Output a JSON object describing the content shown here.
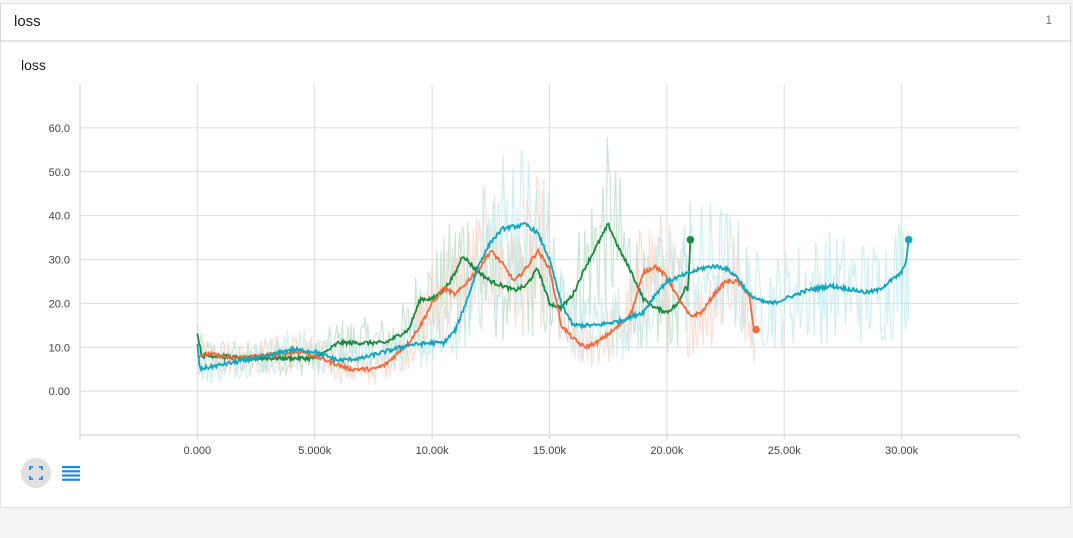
{
  "card": {
    "title": "loss",
    "count": "1"
  },
  "toolbar": {
    "fit_icon": "fit-to-data-icon",
    "list_icon": "data-list-icon"
  },
  "chart_data": {
    "type": "line",
    "title": "loss",
    "xlabel": "",
    "ylabel": "",
    "xlim": [
      -5000,
      35000
    ],
    "ylim": [
      -10,
      70
    ],
    "x_ticks": [
      0,
      5000,
      10000,
      15000,
      20000,
      25000,
      30000
    ],
    "x_tick_labels": [
      "0.000",
      "5.000k",
      "10.00k",
      "15.00k",
      "20.00k",
      "25.00k",
      "30.00k"
    ],
    "y_ticks": [
      0,
      10,
      20,
      30,
      40,
      50,
      60
    ],
    "y_tick_labels": [
      "0.00",
      "10.0",
      "20.0",
      "30.0",
      "40.0",
      "50.0",
      "60.0"
    ],
    "grid": true,
    "series": [
      {
        "color": "#1b8a3e",
        "raw_color": "#b9dcc4",
        "x": [
          0,
          200,
          1000,
          2000,
          3000,
          4000,
          5000,
          5500,
          6000,
          7000,
          8000,
          9000,
          9500,
          10000,
          10500,
          11000,
          11300,
          11800,
          12500,
          13000,
          13500,
          14000,
          14500,
          15000,
          15500,
          16000,
          16500,
          17000,
          17500,
          18000,
          18500,
          19000,
          19500,
          20000,
          20500,
          20800,
          20900,
          21000
        ],
        "y": [
          13,
          8,
          8,
          7.5,
          7.5,
          7.5,
          7.5,
          9,
          11,
          11,
          11,
          14,
          21,
          21,
          23,
          27,
          31,
          28,
          25,
          24,
          23,
          24,
          28,
          20,
          19,
          22,
          28,
          33,
          38,
          32,
          27,
          21,
          19,
          18,
          20,
          24,
          23,
          34.5
        ]
      },
      {
        "color": "#f36b3b",
        "raw_color": "#fdd3c6",
        "x": [
          0,
          500,
          1500,
          2500,
          3500,
          4500,
          5500,
          6000,
          6500,
          7500,
          8000,
          9000,
          9500,
          10000,
          10500,
          11000,
          11500,
          12000,
          12500,
          13000,
          13500,
          14000,
          14500,
          15000,
          15500,
          16000,
          16500,
          17000,
          17500,
          18000,
          18500,
          19000,
          19500,
          20000,
          20500,
          21000,
          21500,
          22000,
          22500,
          23000,
          23500,
          23700,
          23800
        ],
        "y": [
          8,
          8.5,
          7.5,
          8,
          8.5,
          9,
          7,
          6,
          5,
          5,
          6,
          11,
          15,
          20,
          23.5,
          22,
          25,
          28,
          32,
          29,
          25,
          28,
          32,
          28,
          15,
          12,
          10,
          11,
          13,
          15,
          18,
          27,
          28.5,
          26,
          21,
          17,
          18,
          22,
          25,
          25,
          22,
          14,
          14
        ]
      },
      {
        "color": "#13a5bd",
        "raw_color": "#c0e9ef",
        "x": [
          0,
          100,
          1000,
          2000,
          3000,
          4000,
          5000,
          5500,
          6000,
          7000,
          8000,
          9000,
          10000,
          10500,
          11000,
          11500,
          12000,
          12500,
          13000,
          13500,
          14000,
          14500,
          15000,
          15500,
          16000,
          17000,
          18000,
          19000,
          19500,
          20000,
          20500,
          21000,
          21500,
          22000,
          22500,
          23000,
          23500,
          24000,
          24500,
          25000,
          26000,
          27000,
          28000,
          28500,
          29000,
          29500,
          30000,
          30200,
          30300
        ],
        "y": [
          11,
          5,
          6,
          7,
          8,
          9.5,
          9,
          8,
          7,
          7.5,
          9,
          10.5,
          11,
          11,
          14,
          21,
          29,
          34,
          37,
          37.5,
          38,
          36,
          30,
          20,
          15,
          15,
          16,
          18,
          22,
          25,
          26,
          27,
          28,
          28.5,
          28,
          26,
          22,
          20.5,
          20,
          21,
          23,
          24,
          23,
          22.5,
          23,
          25,
          27,
          30,
          34.5
        ]
      }
    ]
  }
}
